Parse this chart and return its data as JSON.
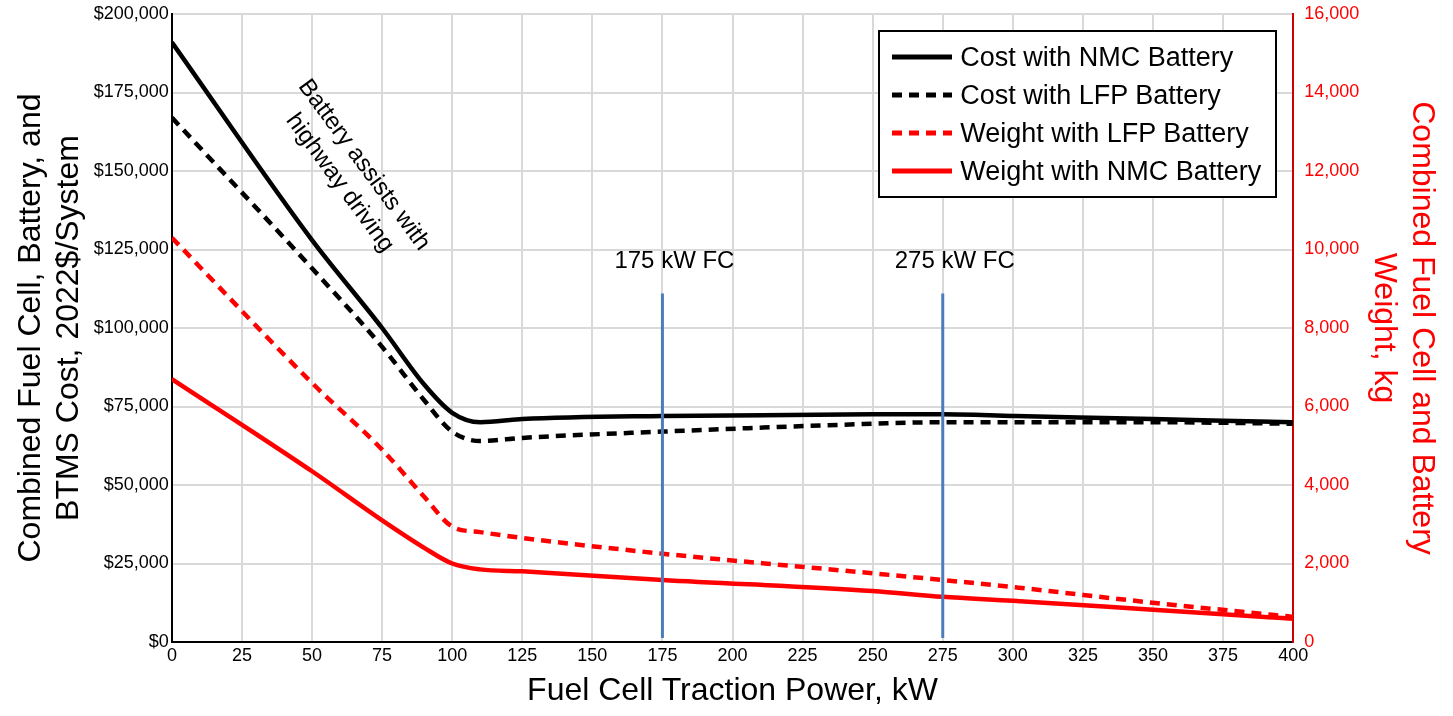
{
  "chart_data": {
    "type": "line",
    "xlabel": "Fuel Cell Traction Power, kW",
    "ylabel": "Combined Fuel Cell, Battery, and BTMS Cost, 2022$/System",
    "y2label": "Combined Fuel Cell and Battery Weight, kg",
    "x": [
      0,
      50,
      75,
      90,
      100,
      110,
      125,
      175,
      250,
      275,
      300,
      350,
      400
    ],
    "xlim": [
      0,
      400
    ],
    "xticks": [
      0,
      25,
      50,
      75,
      100,
      125,
      150,
      175,
      200,
      225,
      250,
      275,
      300,
      325,
      350,
      375,
      400
    ],
    "ylim": [
      0,
      200000
    ],
    "yticks": [
      {
        "value": 0,
        "label": "$0"
      },
      {
        "value": 25000,
        "label": "$25,000"
      },
      {
        "value": 50000,
        "label": "$50,000"
      },
      {
        "value": 75000,
        "label": "$75,000"
      },
      {
        "value": 100000,
        "label": "$100,000"
      },
      {
        "value": 125000,
        "label": "$125,000"
      },
      {
        "value": 150000,
        "label": "$150,000"
      },
      {
        "value": 175000,
        "label": "$175,000"
      },
      {
        "value": 200000,
        "label": "$200,000"
      }
    ],
    "y2lim": [
      0,
      16000
    ],
    "y2ticks": [
      0,
      {
        "value": 2000,
        "label": "2,000"
      },
      {
        "value": 4000,
        "label": "4,000"
      },
      {
        "value": 6000,
        "label": "6,000"
      },
      {
        "value": 8000,
        "label": "8,000"
      },
      {
        "value": 10000,
        "label": "10,000"
      },
      {
        "value": 12000,
        "label": "12,000"
      },
      {
        "value": 14000,
        "label": "14,000"
      },
      {
        "value": 16000,
        "label": "16,000"
      }
    ],
    "series": [
      {
        "name": "Cost with NMC Battery",
        "color": "#000000",
        "line_style": "solid",
        "values": [
          191000,
          128000,
          100000,
          82000,
          73000,
          70000,
          71000,
          72000,
          72500,
          72500,
          72000,
          71000,
          70000
        ]
      },
      {
        "name": "Cost with LFP Battery",
        "color": "#000000",
        "line_style": "dashed",
        "values": [
          167000,
          119000,
          94000,
          77000,
          67000,
          64000,
          65000,
          67000,
          69500,
          70000,
          70000,
          70000,
          69500
        ]
      },
      {
        "name": "Weight with LFP Battery",
        "color": "#ff0000",
        "line_style": "dashed",
        "axis": "y2",
        "values": [
          10300,
          6600,
          4900,
          3700,
          2940,
          2800,
          2650,
          2250,
          1750,
          1580,
          1400,
          1000,
          640
        ]
      },
      {
        "name": "Weight with NMC Battery",
        "color": "#ff0000",
        "line_style": "solid",
        "axis": "y2",
        "values": [
          6700,
          4350,
          3100,
          2400,
          2000,
          1850,
          1800,
          1580,
          1300,
          1150,
          1050,
          820,
          590
        ]
      }
    ],
    "ref_lines": [
      {
        "axis": "x",
        "value": 175,
        "label": "175 kW FC",
        "color": "#4a7ebb"
      },
      {
        "axis": "x",
        "value": 275,
        "label": "275 kW FC",
        "color": "#4a7ebb"
      }
    ],
    "annotations": [
      "Battery assists with\nhighway driving"
    ],
    "grid": true,
    "legend": "top right",
    "marker": "none"
  }
}
